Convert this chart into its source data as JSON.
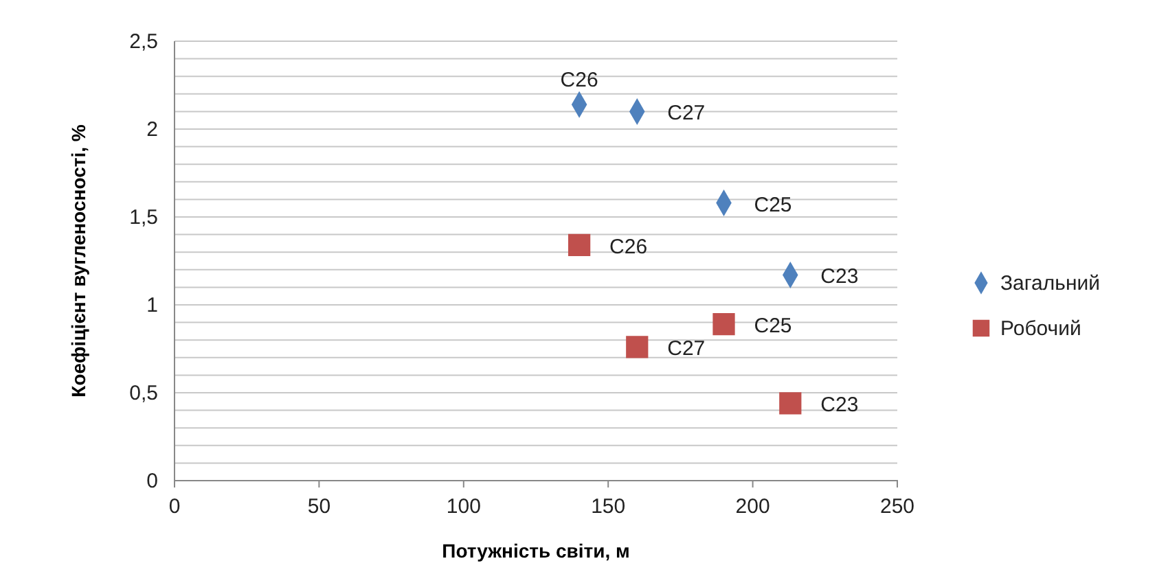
{
  "chart_data": {
    "type": "scatter",
    "xlabel": "Потужність світи, м",
    "ylabel": "Коефіцієнт вугленосності, %",
    "xlim": [
      0,
      250
    ],
    "xticks": [
      0,
      50,
      100,
      150,
      200,
      250
    ],
    "ylim": [
      0,
      2.5
    ],
    "yticks": [
      0,
      {
        "value": 0.1,
        "label": null
      },
      {
        "value": 0.2,
        "label": null
      },
      {
        "value": 0.3,
        "label": null
      },
      {
        "value": 0.4,
        "label": null
      },
      "0,5",
      {
        "value": 0.6,
        "label": null
      },
      {
        "value": 0.7,
        "label": null
      },
      {
        "value": 0.8,
        "label": null
      },
      {
        "value": 0.9,
        "label": null
      },
      1,
      {
        "value": 1.1,
        "label": null
      },
      {
        "value": 1.2,
        "label": null
      },
      {
        "value": 1.3,
        "label": null
      },
      {
        "value": 1.4,
        "label": null
      },
      {
        "value": 1.5,
        "label": "1,5"
      },
      {
        "value": 1.6,
        "label": null
      },
      {
        "value": 1.7,
        "label": null
      },
      {
        "value": 1.8,
        "label": null
      },
      {
        "value": 1.9,
        "label": null
      },
      2,
      {
        "value": 2.1,
        "label": null
      },
      {
        "value": 2.2,
        "label": null
      },
      {
        "value": 2.3,
        "label": null
      },
      {
        "value": 2.4,
        "label": null
      },
      {
        "value": 2.5,
        "label": "2,5"
      }
    ],
    "grid": "y",
    "legend": "right",
    "series": [
      {
        "name": "Загальний",
        "color": "#4f81bd",
        "marker": "diamond",
        "x": [
          140,
          160,
          190,
          213
        ],
        "values": [
          2.14,
          2.1,
          1.58,
          1.17
        ]
      },
      {
        "name": "Робочий",
        "color": "#c0504d",
        "marker": "square",
        "x": [
          140,
          160,
          190,
          213
        ],
        "values": [
          1.34,
          0.76,
          0.89,
          0.44
        ]
      }
    ],
    "annotations": [
      {
        "text": "C26",
        "x": 140,
        "y": 2.14
      },
      {
        "text": "C27",
        "x": 160,
        "y": 2.1
      },
      {
        "text": "C25",
        "x": 190,
        "y": 1.58
      },
      {
        "text": "C23",
        "x": 213,
        "y": 1.17
      },
      {
        "text": "C26",
        "x": 140,
        "y": 1.34
      },
      {
        "text": "C27",
        "x": 160,
        "y": 0.76
      },
      {
        "text": "C25",
        "x": 190,
        "y": 0.89
      },
      {
        "text": "C23",
        "x": 213,
        "y": 0.44
      }
    ]
  }
}
